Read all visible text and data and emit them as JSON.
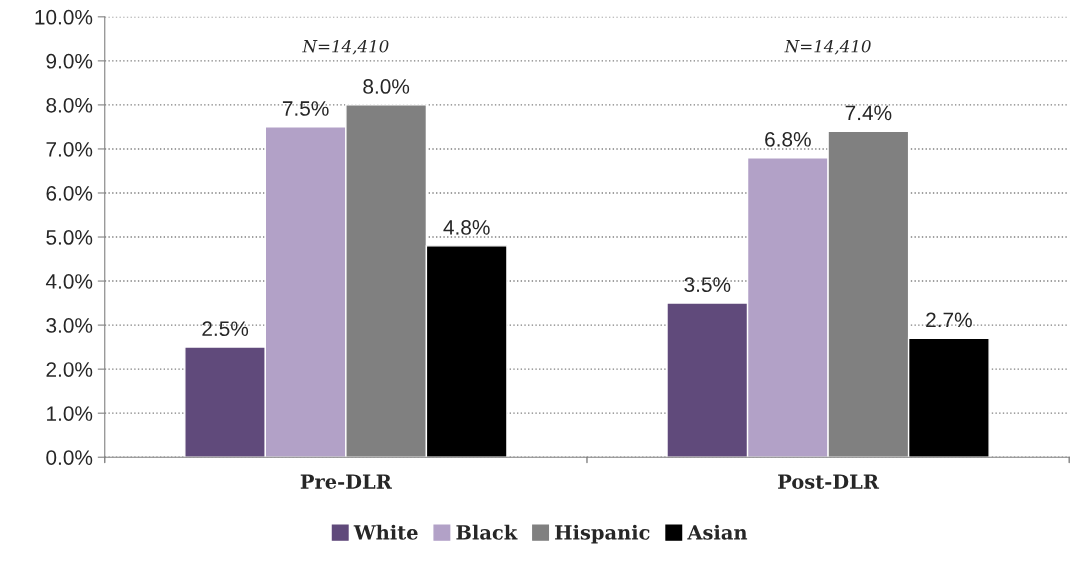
{
  "chart_data": {
    "type": "bar",
    "categories": [
      "Pre-DLR",
      "Post-DLR"
    ],
    "series": [
      {
        "name": "White",
        "color": "#604a7b",
        "values": [
          2.5,
          3.5
        ],
        "value_labels": [
          "2.5%",
          "3.5%"
        ]
      },
      {
        "name": "Black",
        "color": "#b2a1c7",
        "values": [
          7.5,
          6.8
        ],
        "value_labels": [
          "7.5%",
          "6.8%"
        ]
      },
      {
        "name": "Hispanic",
        "color": "#808080",
        "values": [
          8.0,
          7.4
        ],
        "value_labels": [
          "8.0%",
          "7.4%"
        ]
      },
      {
        "name": "Asian",
        "color": "#000000",
        "values": [
          4.8,
          2.7
        ],
        "value_labels": [
          "4.8%",
          "2.7%"
        ]
      }
    ],
    "ylim": [
      0,
      10
    ],
    "yticks": [
      {
        "value": 0,
        "label": "0.0%"
      },
      {
        "value": 1,
        "label": "1.0%"
      },
      {
        "value": 2,
        "label": "2.0%"
      },
      {
        "value": 3,
        "label": "3.0%"
      },
      {
        "value": 4,
        "label": "4.0%"
      },
      {
        "value": 5,
        "label": "5.0%"
      },
      {
        "value": 6,
        "label": "6.0%"
      },
      {
        "value": 7,
        "label": "7.0%"
      },
      {
        "value": 8,
        "label": "8.0%"
      },
      {
        "value": 9,
        "label": "9.0%"
      },
      {
        "value": 10,
        "label": "10.0%"
      }
    ],
    "annotations": [
      "N=14,410",
      "N=14,410"
    ],
    "grid": "y",
    "legend": "bottom"
  }
}
